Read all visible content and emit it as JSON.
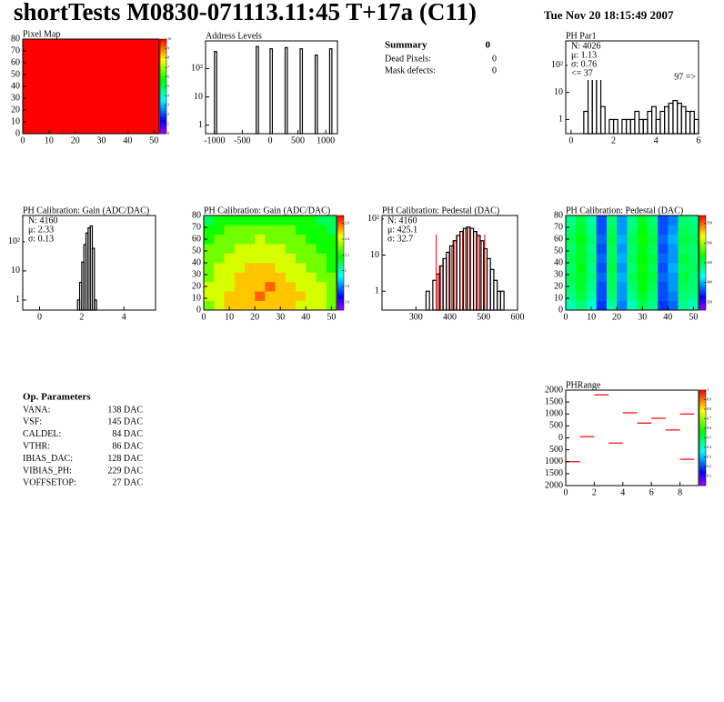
{
  "header": {
    "title": "shortTests M0830-071113.11:45 T+17a (C11)",
    "date": "Tue Nov 20 18:15:49 2007"
  },
  "summary": {
    "title": "Summary",
    "total": 0,
    "rows": [
      [
        "Dead Pixels:",
        0
      ],
      [
        "Mask defects:",
        0
      ]
    ]
  },
  "op_parameters": {
    "title": "Op. Parameters",
    "rows": [
      [
        "VANA:",
        "138 DAC"
      ],
      [
        "VSF:",
        "145 DAC"
      ],
      [
        "CALDEL:",
        "84 DAC"
      ],
      [
        "VTHR:",
        "86 DAC"
      ],
      [
        "IBIAS_DAC:",
        "128 DAC"
      ],
      [
        "VIBIAS_PH:",
        "229 DAC"
      ],
      [
        "VOFFSETOP:",
        "27 DAC"
      ]
    ]
  },
  "chart_data": [
    {
      "type": "heatmap",
      "title": "Pixel Map",
      "xlim": [
        0,
        52
      ],
      "ylim": [
        0,
        80
      ],
      "xticks": [
        0,
        10,
        20,
        30,
        40,
        50
      ],
      "yticks": [
        0,
        10,
        20,
        30,
        40,
        50,
        60,
        70,
        80
      ],
      "zlim": [
        0,
        10
      ],
      "zticks": [
        0,
        1,
        2,
        3,
        4,
        5,
        6,
        7,
        8,
        9,
        10
      ],
      "values": [
        [
          10
        ]
      ]
    },
    {
      "type": "histogram",
      "title": "Address Levels",
      "log_y": true,
      "color": "#000000",
      "xlim": [
        -1160,
        1210
      ],
      "ylim": [
        0.5,
        950
      ],
      "xticks": [
        -1000,
        -500,
        0,
        500,
        1000
      ],
      "yticks": [
        1,
        10,
        {
          "value": 100,
          "label": "10²"
        }
      ],
      "bins": [
        -1160,
        -1000,
        -960,
        -250,
        -210,
        0,
        40,
        270,
        310,
        540,
        580,
        810,
        850,
        1070,
        1110,
        1210
      ],
      "values": [
        0,
        400,
        0,
        600,
        0,
        500,
        0,
        550,
        0,
        500,
        0,
        300,
        0,
        500,
        0
      ]
    },
    {
      "type": "histogram",
      "title": "PH Par1",
      "log_y": true,
      "color": "#000000",
      "xlim": [
        -0.25,
        6
      ],
      "ylim": [
        0.3,
        800
      ],
      "xticks": [
        0,
        2,
        4,
        6
      ],
      "yticks": [
        1,
        10,
        {
          "value": 100,
          "label": "10²"
        }
      ],
      "stats": [
        "N: 4026",
        "μ: 1.13",
        "σ: 0.76"
      ],
      "underflow_label": "<= 37",
      "overflow_label": "97 =>",
      "bins": [
        0.6,
        0.8,
        1.0,
        1.2,
        1.4,
        1.6,
        1.8,
        2.0,
        2.2,
        2.4,
        2.6,
        2.8,
        3.0,
        3.2,
        3.4,
        3.6,
        3.8,
        4.0,
        4.2,
        4.4,
        4.6,
        4.8,
        5.0,
        5.2,
        5.4,
        5.6,
        5.8,
        6.0
      ],
      "values": [
        2,
        150,
        400,
        60,
        3,
        0,
        1,
        1,
        0,
        1,
        1,
        1,
        2,
        1,
        1,
        2,
        3,
        1,
        2,
        3,
        4,
        5,
        4,
        3,
        2,
        2,
        1
      ]
    },
    {
      "type": "histogram",
      "title": "PH Calibration: Gain (ADC/DAC)",
      "log_y": true,
      "color": "#000000",
      "xlim": [
        -0.8,
        5.5
      ],
      "ylim": [
        0.45,
        800
      ],
      "xticks": [
        0,
        2,
        4
      ],
      "yticks": [
        1,
        10,
        {
          "value": 100,
          "label": "10²"
        }
      ],
      "stats": [
        "N: 4160",
        "μ: 2.33",
        "σ: 0.13"
      ],
      "bins": [
        1.8,
        1.9,
        2.0,
        2.1,
        2.2,
        2.3,
        2.4,
        2.5,
        2.6,
        2.7
      ],
      "values": [
        1,
        4,
        20,
        80,
        200,
        300,
        350,
        60,
        1
      ]
    },
    {
      "type": "heatmap",
      "title": "PH Calibration: Gain (ADC/DAC)",
      "xlim": [
        0,
        52
      ],
      "ylim": [
        0,
        80
      ],
      "xticks": [
        0,
        10,
        20,
        30,
        40,
        50
      ],
      "yticks": [
        0,
        10,
        20,
        30,
        40,
        50,
        60,
        70,
        80
      ],
      "zlim": [
        1.5,
        2.7
      ],
      "zticks": [
        1.6,
        1.8,
        2,
        2.2,
        2.4,
        2.6
      ],
      "values": [
        [
          2.3,
          2.4,
          2.5,
          2.5,
          2.5,
          2.5,
          2.5,
          2.5,
          2.5,
          2.4,
          2.4,
          2.4,
          2.3
        ],
        [
          2.4,
          2.4,
          2.5,
          2.5,
          2.5,
          2.6,
          2.5,
          2.5,
          2.5,
          2.5,
          2.4,
          2.4,
          2.3
        ],
        [
          2.4,
          2.4,
          2.4,
          2.5,
          2.5,
          2.5,
          2.6,
          2.5,
          2.5,
          2.4,
          2.4,
          2.4,
          2.3
        ],
        [
          2.3,
          2.4,
          2.4,
          2.5,
          2.5,
          2.5,
          2.5,
          2.5,
          2.4,
          2.4,
          2.4,
          2.3,
          2.3
        ],
        [
          2.3,
          2.4,
          2.4,
          2.4,
          2.5,
          2.5,
          2.5,
          2.4,
          2.4,
          2.4,
          2.3,
          2.3,
          2.2
        ],
        [
          2.3,
          2.3,
          2.4,
          2.4,
          2.4,
          2.4,
          2.4,
          2.4,
          2.4,
          2.3,
          2.3,
          2.3,
          2.2
        ],
        [
          2.3,
          2.3,
          2.3,
          2.4,
          2.4,
          2.4,
          2.4,
          2.4,
          2.3,
          2.3,
          2.3,
          2.2,
          2.2
        ],
        [
          2.2,
          2.3,
          2.3,
          2.3,
          2.3,
          2.4,
          2.3,
          2.3,
          2.3,
          2.3,
          2.2,
          2.2,
          2.2
        ],
        [
          2.2,
          2.2,
          2.3,
          2.3,
          2.3,
          2.3,
          2.3,
          2.3,
          2.3,
          2.2,
          2.2,
          2.2,
          2.1
        ],
        [
          2.1,
          2.2,
          2.2,
          2.2,
          2.2,
          2.2,
          2.2,
          2.2,
          2.2,
          2.2,
          2.2,
          2.1,
          2.1
        ]
      ]
    },
    {
      "type": "histogram",
      "title": "PH Calibration: Pedestal (DAC)",
      "log_y": true,
      "color": "#000000",
      "hatch_color": "#ff0000",
      "xlim": [
        200,
        600
      ],
      "ylim": [
        0.3,
        125
      ],
      "xticks": [
        300,
        400,
        500,
        600
      ],
      "yticks": [
        1,
        10,
        {
          "value": 100,
          "label": "10²"
        }
      ],
      "stats": [
        "N: 4160",
        "μ: 425.1",
        "σ: 32.7"
      ],
      "stats_colors": [
        "#000000",
        "#ff0000",
        "#ff0000"
      ],
      "cuts": [
        360,
        503
      ],
      "bins": [
        330,
        340,
        350,
        360,
        370,
        380,
        390,
        400,
        410,
        420,
        430,
        440,
        450,
        460,
        470,
        480,
        490,
        500,
        510,
        520,
        530,
        540,
        550,
        560
      ],
      "values": [
        1,
        0,
        2,
        3,
        5,
        8,
        12,
        18,
        25,
        35,
        45,
        55,
        60,
        55,
        45,
        35,
        25,
        15,
        8,
        4,
        2,
        1,
        1
      ]
    },
    {
      "type": "heatmap",
      "title": "PH Calibration: Pedestal (DAC)",
      "xlim": [
        0,
        52
      ],
      "ylim": [
        0,
        80
      ],
      "xticks": [
        0,
        10,
        20,
        30,
        40,
        50
      ],
      "yticks": [
        0,
        10,
        20,
        30,
        40,
        50,
        60,
        70,
        80
      ],
      "zlim": [
        330,
        570
      ],
      "zticks": [
        350,
        400,
        450,
        500,
        550
      ],
      "values": [
        [
          430,
          445,
          425,
          375,
          435,
          390,
          430,
          450,
          440,
          375,
          385,
          440,
          430
        ],
        [
          440,
          455,
          435,
          380,
          445,
          395,
          440,
          460,
          445,
          380,
          390,
          445,
          440
        ],
        [
          445,
          460,
          440,
          380,
          450,
          395,
          445,
          465,
          450,
          380,
          395,
          450,
          445
        ],
        [
          450,
          460,
          445,
          385,
          450,
          400,
          450,
          465,
          455,
          385,
          395,
          455,
          445
        ],
        [
          445,
          465,
          440,
          380,
          455,
          395,
          445,
          470,
          450,
          380,
          400,
          450,
          450
        ],
        [
          450,
          460,
          445,
          385,
          450,
          400,
          450,
          465,
          455,
          385,
          395,
          455,
          445
        ],
        [
          445,
          460,
          440,
          380,
          450,
          395,
          445,
          465,
          450,
          380,
          395,
          450,
          445
        ],
        [
          450,
          465,
          445,
          385,
          455,
          400,
          450,
          470,
          455,
          385,
          400,
          455,
          450
        ],
        [
          445,
          460,
          440,
          380,
          450,
          395,
          445,
          465,
          450,
          380,
          395,
          450,
          445
        ],
        [
          440,
          455,
          435,
          380,
          445,
          395,
          440,
          460,
          445,
          380,
          390,
          445,
          440
        ]
      ]
    },
    {
      "type": "segments",
      "title": "PHRange",
      "color": "#ff0000",
      "xlim": [
        0,
        9.3
      ],
      "ylim": [
        -2000,
        2000
      ],
      "xticks": [
        0,
        2,
        4,
        6,
        8
      ],
      "yticks": [
        {
          "value": -2000,
          "label": "2000"
        },
        {
          "value": -1500,
          "label": "1500"
        },
        {
          "value": -1000,
          "label": "1000"
        },
        {
          "value": -500,
          "label": "500"
        },
        0,
        500,
        1000,
        1500,
        2000
      ],
      "zlim": [
        0,
        1
      ],
      "zticks": [
        0.1,
        0.2,
        0.3,
        0.4,
        0.5,
        0.6,
        0.7,
        0.8,
        0.9,
        1
      ],
      "x": [
        0,
        1,
        2,
        3,
        4,
        5,
        6,
        7,
        8,
        8
      ],
      "values": [
        -1000,
        50,
        1800,
        -220,
        1050,
        620,
        820,
        330,
        1000,
        -900
      ]
    }
  ]
}
